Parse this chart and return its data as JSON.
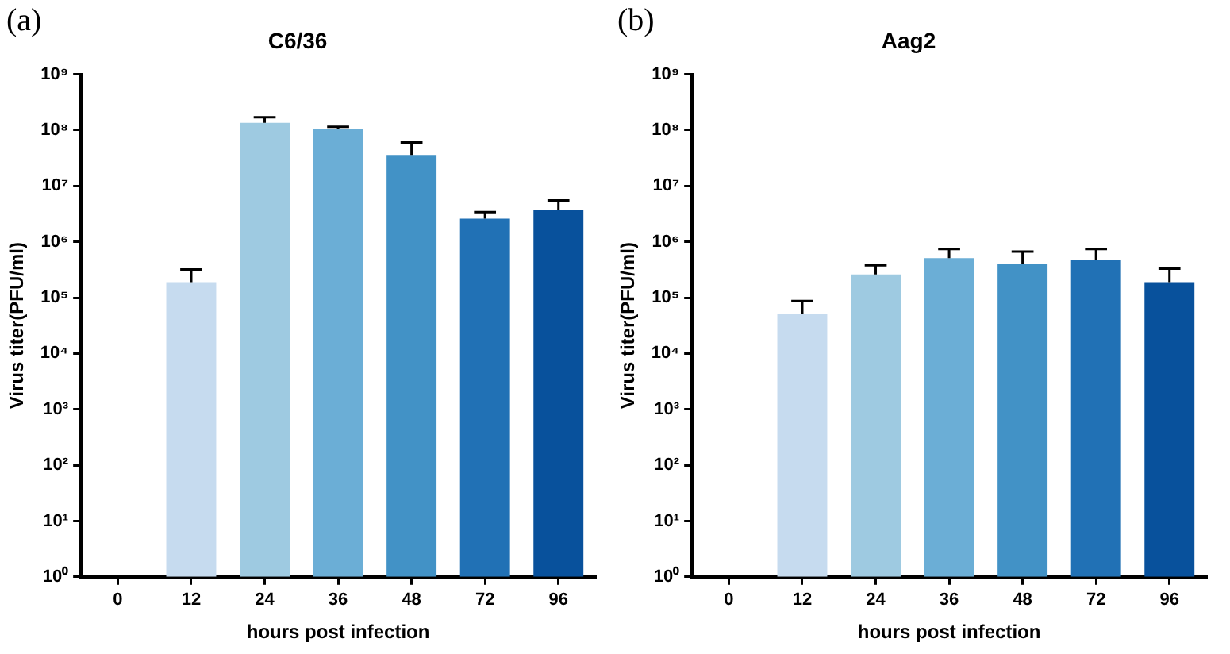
{
  "chart_data": [
    {
      "type": "bar",
      "title": "C6/36",
      "xlabel": "hours post infection",
      "ylabel": "Virus titer(PFU/ml)",
      "annotations": [
        "(a)"
      ],
      "log": "y",
      "grid": false,
      "legend": false,
      "categories": [
        "0",
        "12",
        "24",
        "36",
        "48",
        "72",
        "96"
      ],
      "values": [
        null,
        190000,
        135000000,
        105000000,
        36000000,
        2600000,
        3700000
      ],
      "errors": [
        null,
        [
          190000,
          320000
        ],
        [
          135000000,
          170000000
        ],
        [
          105000000,
          115000000
        ],
        [
          36000000,
          60000000
        ],
        [
          2600000,
          3400000
        ],
        [
          3700000,
          5500000
        ]
      ],
      "colors": [
        "#c6dbef",
        "#c6dbef",
        "#9ecae1",
        "#6baed6",
        "#4292c6",
        "#2171b5",
        "#08519c"
      ],
      "ylim": [
        1,
        1000000000
      ],
      "yticks": [
        {
          "value": 1,
          "label": "10⁰"
        },
        {
          "value": 10,
          "label": "10¹"
        },
        {
          "value": 100,
          "label": "10²"
        },
        {
          "value": 1000,
          "label": "10³"
        },
        {
          "value": 10000,
          "label": "10⁴"
        },
        {
          "value": 100000,
          "label": "10⁵"
        },
        {
          "value": 1000000,
          "label": "10⁶"
        },
        {
          "value": 10000000,
          "label": "10⁷"
        },
        {
          "value": 100000000,
          "label": "10⁸"
        },
        {
          "value": 1000000000,
          "label": "10⁹"
        }
      ]
    },
    {
      "type": "bar",
      "title": "Aag2",
      "xlabel": "hours post infection",
      "ylabel": "Virus titer(PFU/ml)",
      "annotations": [
        "(b)"
      ],
      "log": "y",
      "grid": false,
      "legend": false,
      "categories": [
        "0",
        "12",
        "24",
        "36",
        "48",
        "72",
        "96"
      ],
      "values": [
        null,
        51000,
        260000,
        510000,
        400000,
        470000,
        190000
      ],
      "errors": [
        null,
        [
          51000,
          87000
        ],
        [
          260000,
          380000
        ],
        [
          510000,
          740000
        ],
        [
          400000,
          670000
        ],
        [
          470000,
          740000
        ],
        [
          190000,
          330000
        ]
      ],
      "colors": [
        "#c6dbef",
        "#c6dbef",
        "#9ecae1",
        "#6baed6",
        "#4292c6",
        "#2171b5",
        "#08519c"
      ],
      "ylim": [
        1,
        1000000000
      ],
      "yticks": [
        {
          "value": 1,
          "label": "10⁰"
        },
        {
          "value": 10,
          "label": "10¹"
        },
        {
          "value": 100,
          "label": "10²"
        },
        {
          "value": 1000,
          "label": "10³"
        },
        {
          "value": 10000,
          "label": "10⁴"
        },
        {
          "value": 100000,
          "label": "10⁵"
        },
        {
          "value": 1000000,
          "label": "10⁶"
        },
        {
          "value": 10000000,
          "label": "10⁷"
        },
        {
          "value": 100000000,
          "label": "10⁸"
        },
        {
          "value": 1000000000,
          "label": "10⁹"
        }
      ]
    }
  ]
}
